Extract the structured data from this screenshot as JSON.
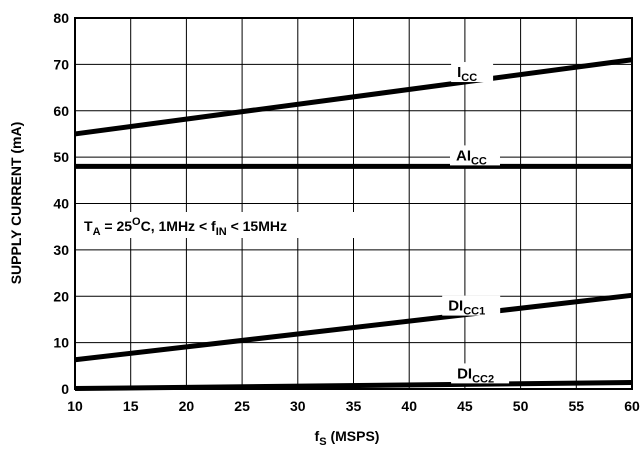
{
  "chart_data": {
    "type": "line",
    "xlabel": "f",
    "xlabel_sub": "S",
    "xlabel_unit": " (MSPS)",
    "ylabel": "SUPPLY CURRENT (mA)",
    "xlim": [
      10,
      60
    ],
    "ylim": [
      0,
      80
    ],
    "xticks": [
      10,
      15,
      20,
      25,
      30,
      35,
      40,
      45,
      50,
      55,
      60
    ],
    "yticks": [
      0,
      10,
      20,
      30,
      40,
      50,
      60,
      70,
      80
    ],
    "grid": true,
    "annotation": {
      "t": "T",
      "t_sub": "A",
      "t_mid": " = 25",
      "deg": "O",
      "t_rest": "C, 1MHz < f",
      "f_sub": "IN",
      "t_end": " < 15MHz"
    },
    "series": [
      {
        "name": "I",
        "name_sub": "CC",
        "x": [
          10,
          60
        ],
        "y": [
          55,
          71
        ]
      },
      {
        "name": "AI",
        "name_sub": "CC",
        "x": [
          10,
          60
        ],
        "y": [
          48,
          48
        ]
      },
      {
        "name": "DI",
        "name_sub": "CC1",
        "x": [
          10,
          60
        ],
        "y": [
          6.3,
          20.2
        ]
      },
      {
        "name": "DI",
        "name_sub": "CC2",
        "x": [
          10,
          60
        ],
        "y": [
          0.1,
          1.4
        ]
      }
    ]
  }
}
